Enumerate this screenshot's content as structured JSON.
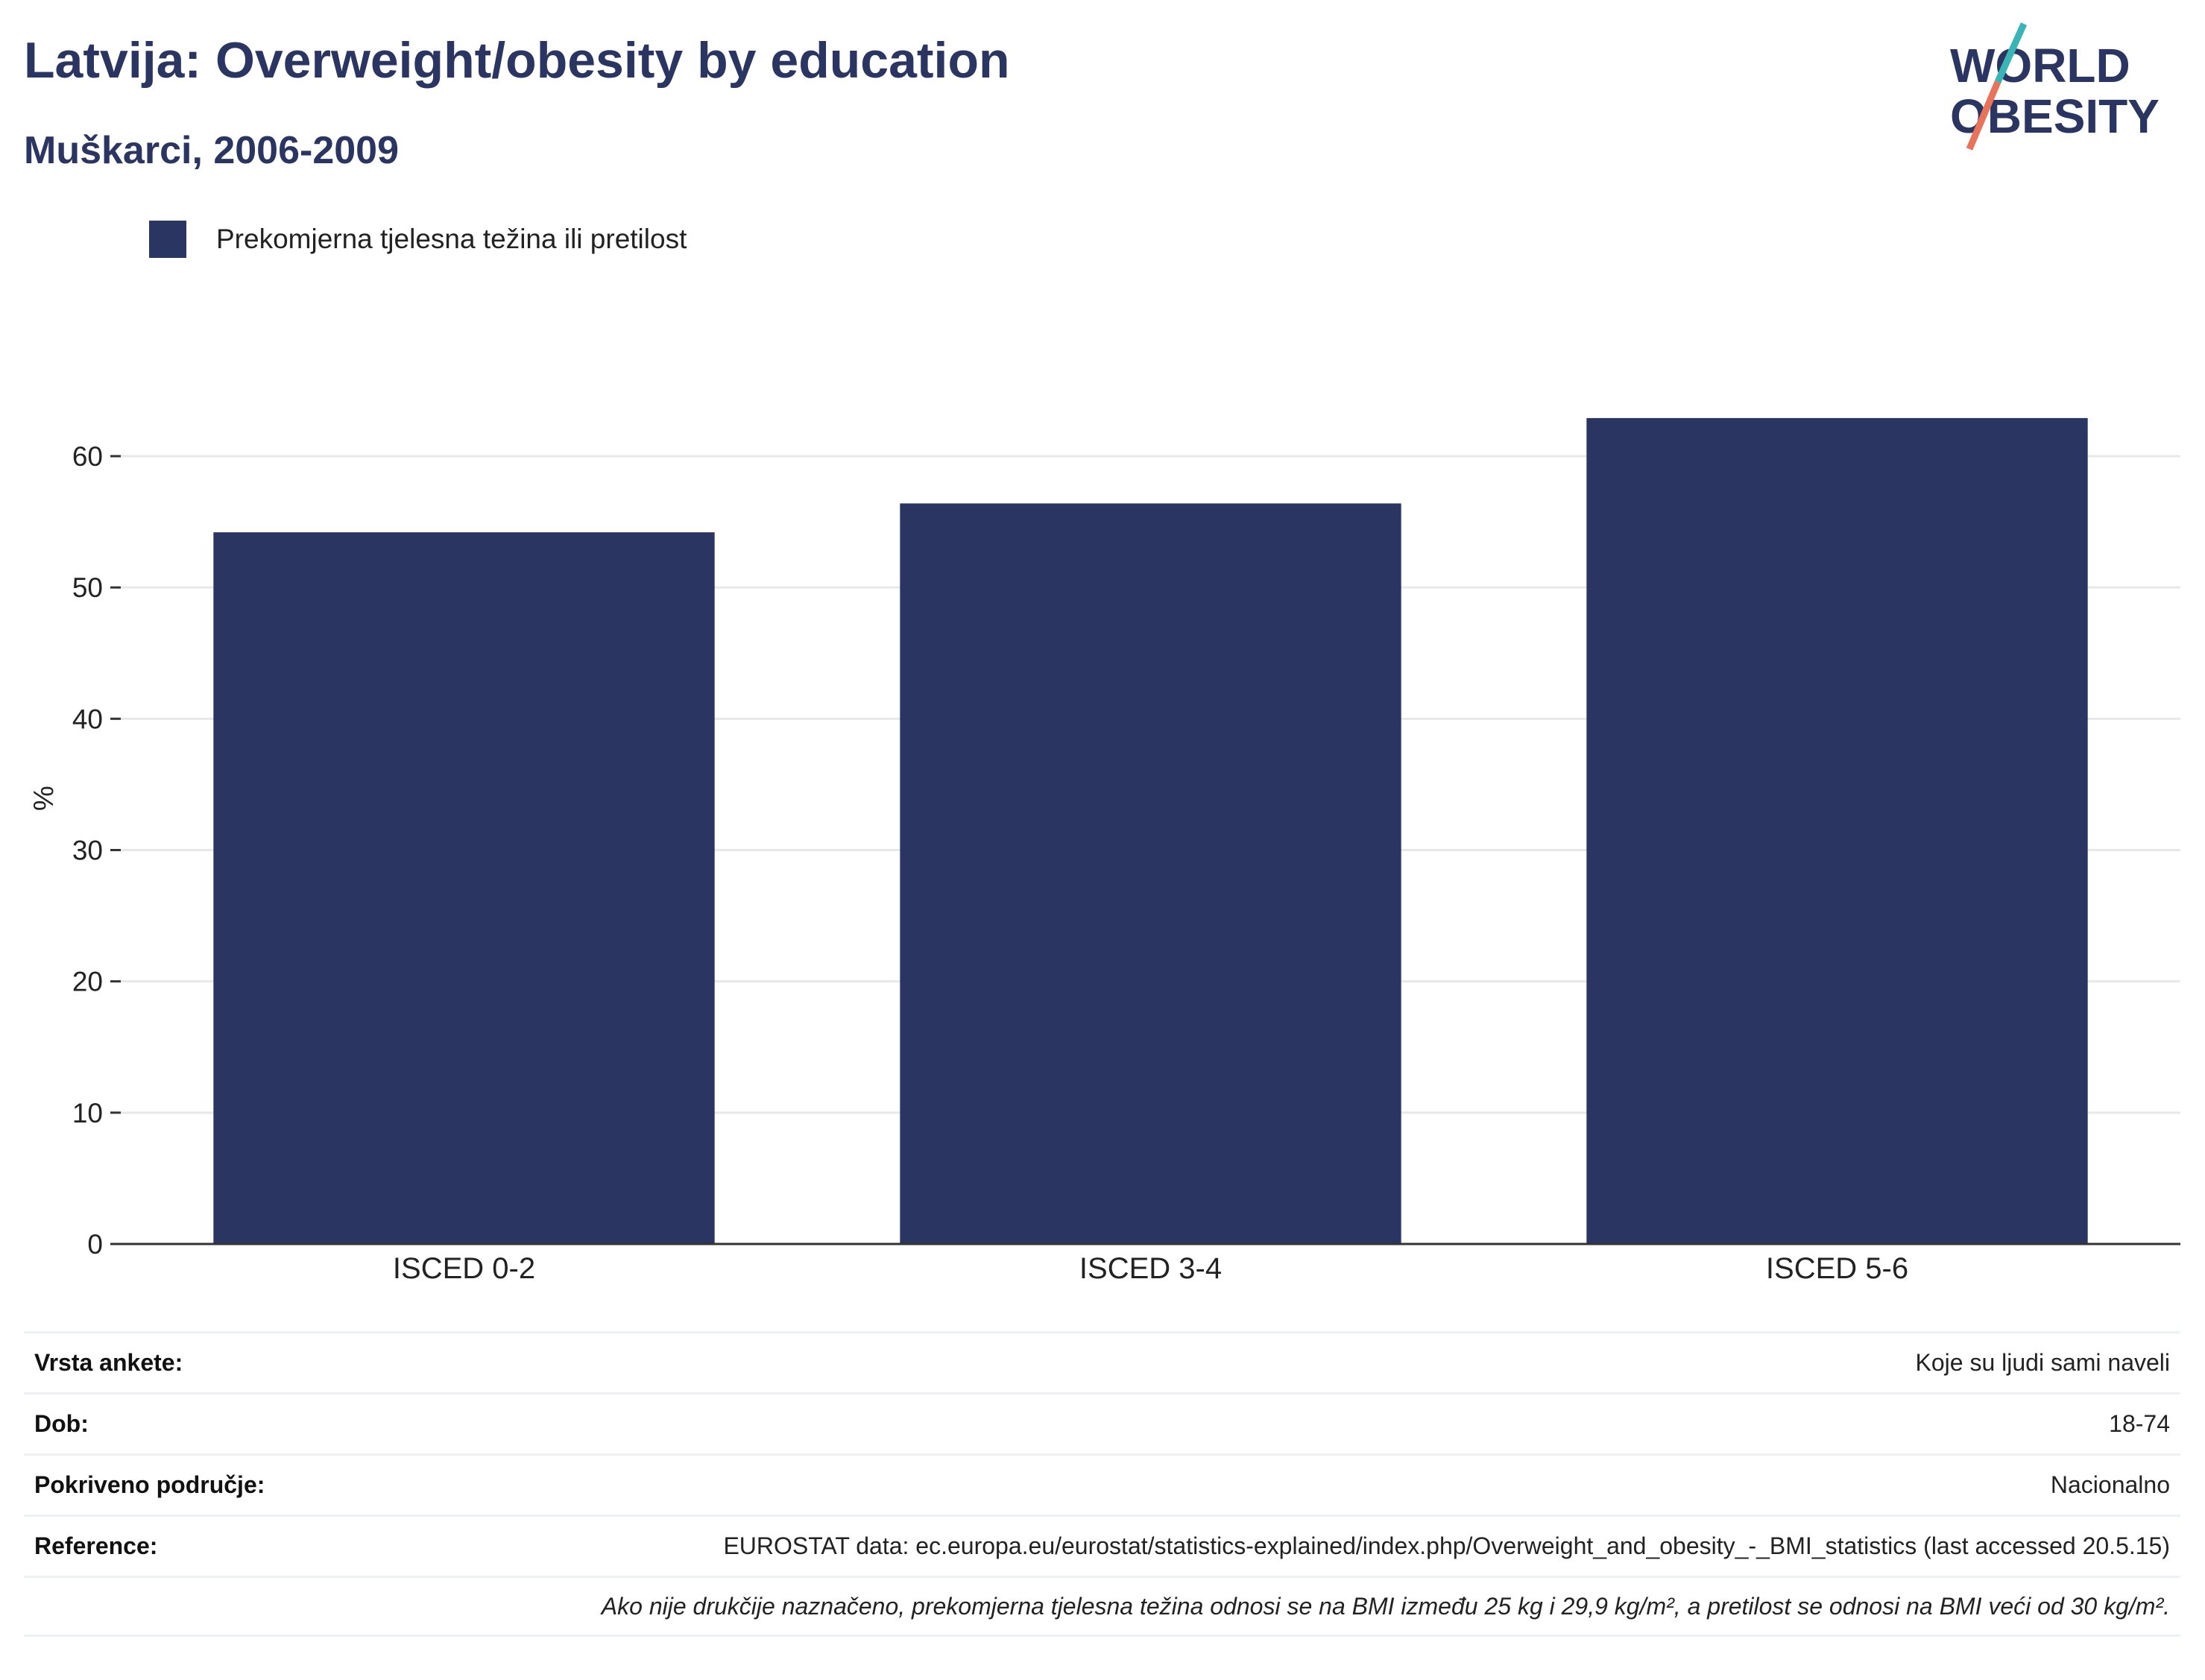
{
  "title": "Latvija: Overweight/obesity by education",
  "subtitle": "Muškarci, 2006-2009",
  "logo": {
    "line1": "WORLD",
    "line2": "OBESITY"
  },
  "colors": {
    "bar": "#2a3561",
    "logo_text": "#2a3561",
    "logo_slash_top": "#3ab5b5",
    "logo_slash_bottom": "#e8735a",
    "grid": "#e8e8e8"
  },
  "legend": {
    "label": "Prekomjerna tjelesna težina ili pretilost"
  },
  "chart_data": {
    "type": "bar",
    "categories": [
      "ISCED 0-2",
      "ISCED 3-4",
      "ISCED 5-6"
    ],
    "series": [
      {
        "name": "Prekomjerna tjelesna težina ili pretilost",
        "values": [
          54.2,
          56.4,
          62.9
        ]
      }
    ],
    "ylabel": "%",
    "xlabel": "",
    "ylim": [
      0,
      65
    ],
    "yticks": [
      0,
      10,
      20,
      30,
      40,
      50,
      60
    ],
    "grid": true,
    "legend_position": "top-left"
  },
  "info": [
    {
      "key": "Vrsta ankete:",
      "value": "Koje su ljudi sami naveli"
    },
    {
      "key": "Dob:",
      "value": "18-74"
    },
    {
      "key": "Pokriveno područje:",
      "value": "Nacionalno"
    },
    {
      "key": "Reference:",
      "value": "EUROSTAT data: ec.europa.eu/eurostat/statistics-explained/index.php/Overweight_and_obesity_-_BMI_statistics (last accessed 20.5.15)"
    }
  ],
  "note": "Ako nije drukčije naznačeno, prekomjerna tjelesna težina odnosi se na BMI između 25 kg i 29,9 kg/m², a pretilost se odnosi na BMI veći od 30 kg/m²."
}
